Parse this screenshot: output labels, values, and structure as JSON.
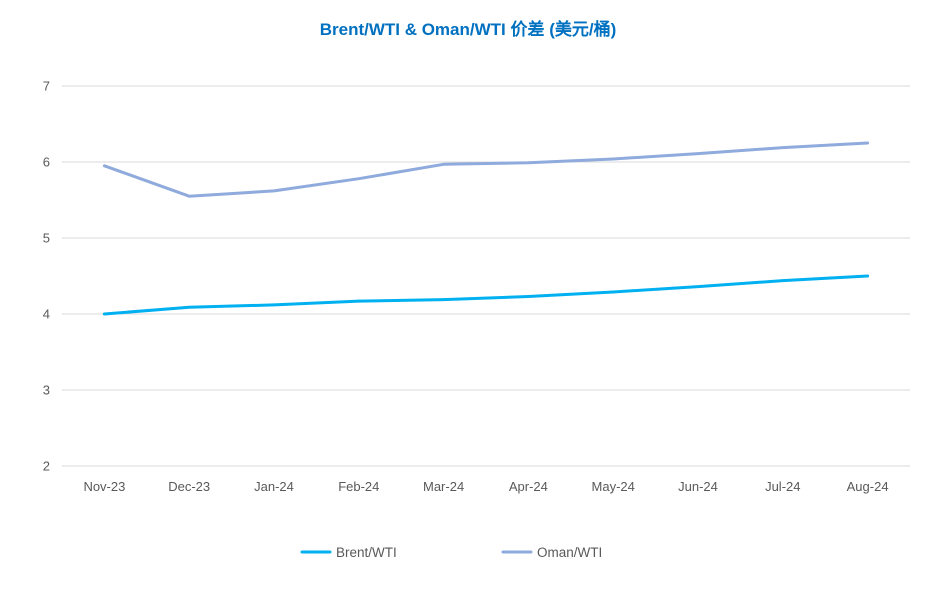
{
  "chart_data": {
    "type": "line",
    "title": "Brent/WTI & Oman/WTI 价差 (美元/桶)",
    "xlabel": "",
    "ylabel": "",
    "categories": [
      "Nov-23",
      "Dec-23",
      "Jan-24",
      "Feb-24",
      "Mar-24",
      "Apr-24",
      "May-24",
      "Jun-24",
      "Jul-24",
      "Aug-24"
    ],
    "ylim": [
      2,
      7
    ],
    "yticks": [
      2,
      3,
      4,
      5,
      6,
      7
    ],
    "grid": true,
    "legend_position": "bottom",
    "series": [
      {
        "name": "Brent/WTI",
        "color": "#00B0F0",
        "values": [
          4.0,
          4.09,
          4.12,
          4.17,
          4.19,
          4.23,
          4.29,
          4.36,
          4.44,
          4.5
        ]
      },
      {
        "name": "Oman/WTI",
        "color": "#8FAADC",
        "values": [
          5.95,
          5.55,
          5.62,
          5.78,
          5.97,
          5.99,
          6.04,
          6.11,
          6.19,
          6.25
        ]
      }
    ],
    "title_color": "#0070C0"
  }
}
